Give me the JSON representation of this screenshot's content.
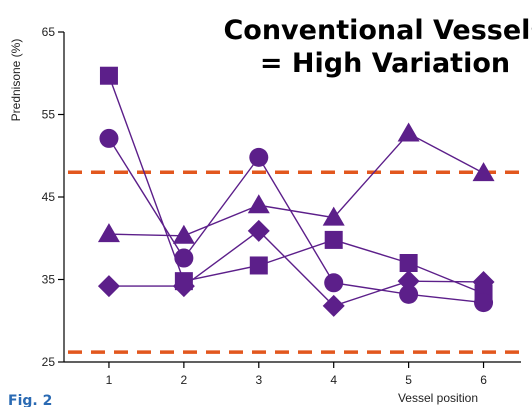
{
  "chart_data": {
    "type": "line",
    "title_lines": [
      "Conventional Vessels",
      "= High Variation"
    ],
    "ylabel": "Prednisone (%)",
    "xlabel": "Vessel position",
    "x": [
      1,
      2,
      3,
      4,
      5,
      6
    ],
    "xlim": [
      0.4,
      6.5
    ],
    "ylim": [
      25,
      65
    ],
    "yticks": [
      25,
      35,
      45,
      55,
      65
    ],
    "reference_lines": [
      48,
      26.2
    ],
    "series": [
      {
        "marker": "square",
        "values": [
          59.7,
          34.8,
          36.7,
          39.8,
          37.0,
          33.3
        ]
      },
      {
        "marker": "circle",
        "values": [
          52.1,
          37.6,
          49.8,
          34.6,
          33.2,
          32.2
        ]
      },
      {
        "marker": "triangle",
        "values": [
          40.5,
          40.3,
          44.0,
          42.5,
          52.7,
          47.9
        ]
      },
      {
        "marker": "diamond",
        "values": [
          34.2,
          34.2,
          40.9,
          31.8,
          34.8,
          34.7
        ]
      }
    ],
    "colors": {
      "series": "#5c1f8a",
      "reference": "#e2571e",
      "axis": "#000000"
    }
  },
  "caption": "Fig. 2"
}
